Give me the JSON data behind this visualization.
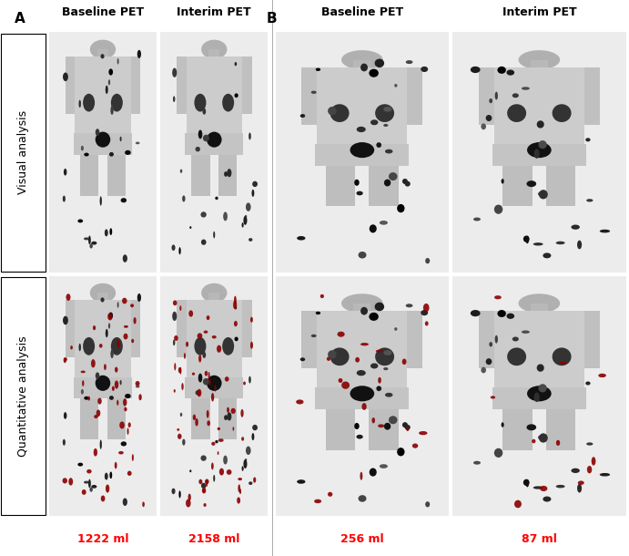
{
  "figure_width": 6.91,
  "figure_height": 6.1,
  "background_color": "#ffffff",
  "col_headers": [
    "Baseline PET",
    "Interim PET",
    "Baseline PET",
    "Interim PET"
  ],
  "row_labels": [
    "Visual analysis",
    "Quantitative analysis"
  ],
  "measurements": [
    "1222 ml",
    "2158 ml",
    "256 ml",
    "87 ml"
  ],
  "measurement_color": "#ff0000",
  "divider_color": "#aaaaaa",
  "header_fontsize": 9,
  "panel_label_fontsize": 11,
  "row_label_fontsize": 9,
  "measurement_fontsize": 9
}
